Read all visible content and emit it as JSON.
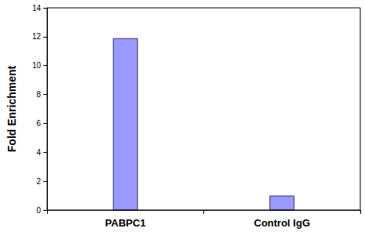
{
  "chart_data": {
    "type": "bar",
    "ylabel": "Fold Enrichment",
    "categories": [
      "PABPC1",
      "Control IgG"
    ],
    "values": [
      11.9,
      1.0
    ],
    "color": "#9999ff",
    "ylim": [
      0,
      14
    ],
    "yticks": [
      0,
      2,
      4,
      6,
      8,
      10,
      12,
      14
    ],
    "grid": false
  }
}
